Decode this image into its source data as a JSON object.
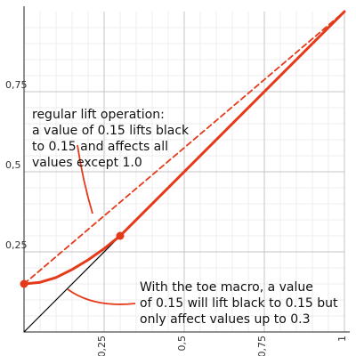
{
  "chart_data": {
    "type": "line",
    "xlim": [
      0,
      1
    ],
    "ylim": [
      0,
      1
    ],
    "x_ticks": [
      {
        "value": 0.25,
        "label": "0,25"
      },
      {
        "value": 0.5,
        "label": "0,5"
      },
      {
        "value": 0.75,
        "label": "0,75"
      },
      {
        "value": 1.0,
        "label": "1"
      }
    ],
    "y_ticks": [
      {
        "value": 0.25,
        "label": "0,25"
      },
      {
        "value": 0.5,
        "label": "0,5"
      },
      {
        "value": 0.75,
        "label": "0,75"
      }
    ],
    "grid": true,
    "series": [
      {
        "role": "identity",
        "color": "#000000",
        "style": "solid",
        "points": [
          [
            0,
            0
          ],
          [
            1,
            1
          ]
        ]
      },
      {
        "role": "regular-lift",
        "color": "#e53a1a",
        "style": "dashed",
        "points": [
          [
            0,
            0.15
          ],
          [
            1,
            1
          ]
        ]
      },
      {
        "role": "toe-macro-curve",
        "color": "#e53a1a",
        "style": "solid",
        "points": [
          [
            0,
            0.15
          ],
          [
            0.05,
            0.155
          ],
          [
            0.1,
            0.17
          ],
          [
            0.15,
            0.195
          ],
          [
            0.2,
            0.225
          ],
          [
            0.25,
            0.26
          ],
          [
            0.3,
            0.3
          ]
        ]
      },
      {
        "role": "toe-macro-linear",
        "color": "#e53a1a",
        "style": "solid",
        "points": [
          [
            0.3,
            0.3
          ],
          [
            1,
            1
          ]
        ]
      }
    ],
    "markers": [
      [
        0,
        0.15
      ],
      [
        0.3,
        0.3
      ]
    ],
    "annotations": [
      {
        "role": "regular-lift-note",
        "lines": [
          "regular lift operation:",
          "a value of 0.15 lifts black",
          "to 0.15 and affects all",
          "values except 1.0"
        ]
      },
      {
        "role": "toe-macro-note",
        "lines": [
          "With the toe macro, a value",
          "of 0.15 will lift black to 0.15 but",
          "only affect values up to 0.3"
        ]
      }
    ]
  }
}
